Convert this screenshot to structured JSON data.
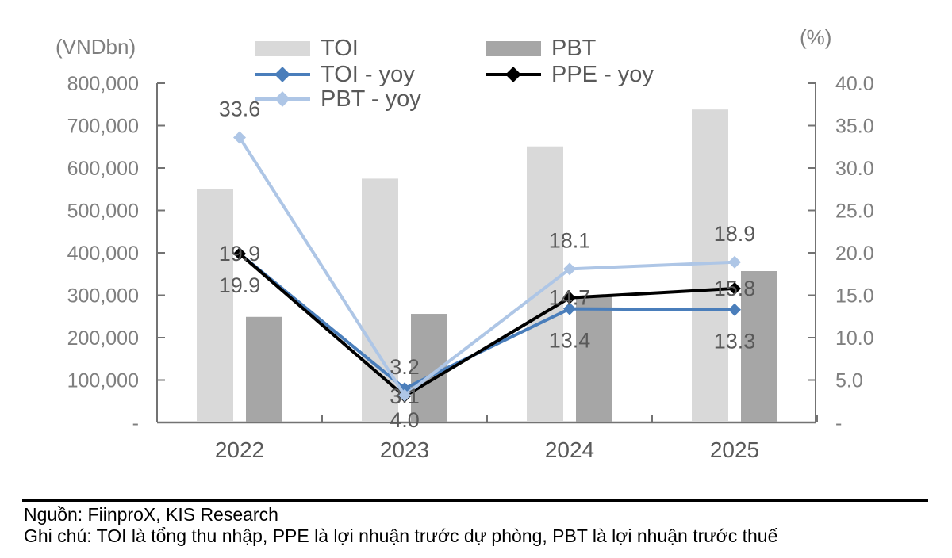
{
  "legend": {
    "items": [
      {
        "label": "TOI",
        "type": "bar",
        "color": "#d9d9d9"
      },
      {
        "label": "PBT",
        "type": "bar",
        "color": "#a6a6a6"
      },
      {
        "label": "TOI - yoy",
        "type": "line",
        "color": "#4a7ebb"
      },
      {
        "label": "PPE - yoy",
        "type": "line",
        "color": "#000000"
      },
      {
        "label": "PBT - yoy",
        "type": "line",
        "color": "#aec6e6"
      }
    ]
  },
  "chart_data": {
    "type": "combo bar+line",
    "categories": [
      "2022",
      "2023",
      "2024",
      "2025"
    ],
    "bar_series": [
      {
        "name": "TOI",
        "axis": "left",
        "color": "#d9d9d9",
        "values": [
          551000,
          575000,
          651000,
          738000
        ]
      },
      {
        "name": "PBT",
        "axis": "left",
        "color": "#a6a6a6",
        "values": [
          249000,
          256000,
          298000,
          357000
        ]
      }
    ],
    "line_series": [
      {
        "name": "TOI - yoy",
        "axis": "right",
        "color": "#4a7ebb",
        "label_position": "below",
        "values": [
          19.9,
          4.0,
          13.4,
          13.3
        ]
      },
      {
        "name": "PPE - yoy",
        "axis": "right",
        "color": "#000000",
        "label_position": "center",
        "values": [
          19.9,
          3.1,
          14.7,
          15.8
        ]
      },
      {
        "name": "PBT - yoy",
        "axis": "right",
        "color": "#aec6e6",
        "label_position": "above",
        "values": [
          33.6,
          3.2,
          18.1,
          18.9
        ]
      }
    ],
    "left_axis": {
      "title": "(VNDbn)",
      "min": 0,
      "max": 800000,
      "step": 100000,
      "tick_labels": [
        "-",
        "100,000",
        "200,000",
        "300,000",
        "400,000",
        "500,000",
        "600,000",
        "700,000",
        "800,000"
      ]
    },
    "right_axis": {
      "title": "(%)",
      "min": 0,
      "max": 40,
      "step": 5,
      "tick_labels": [
        "-",
        "5.0",
        "10.0",
        "15.0",
        "20.0",
        "25.0",
        "30.0",
        "35.0",
        "40.0"
      ]
    },
    "grid": false,
    "legend_position": "top",
    "data_label_color": "#595959"
  },
  "footer": {
    "source": "Nguồn: FiinproX, KIS Research",
    "note": "Ghi chú: TOI là tổng thu nhập, PPE là lợi nhuận trước dự phòng, PBT là lợi nhuận trước thuế"
  }
}
